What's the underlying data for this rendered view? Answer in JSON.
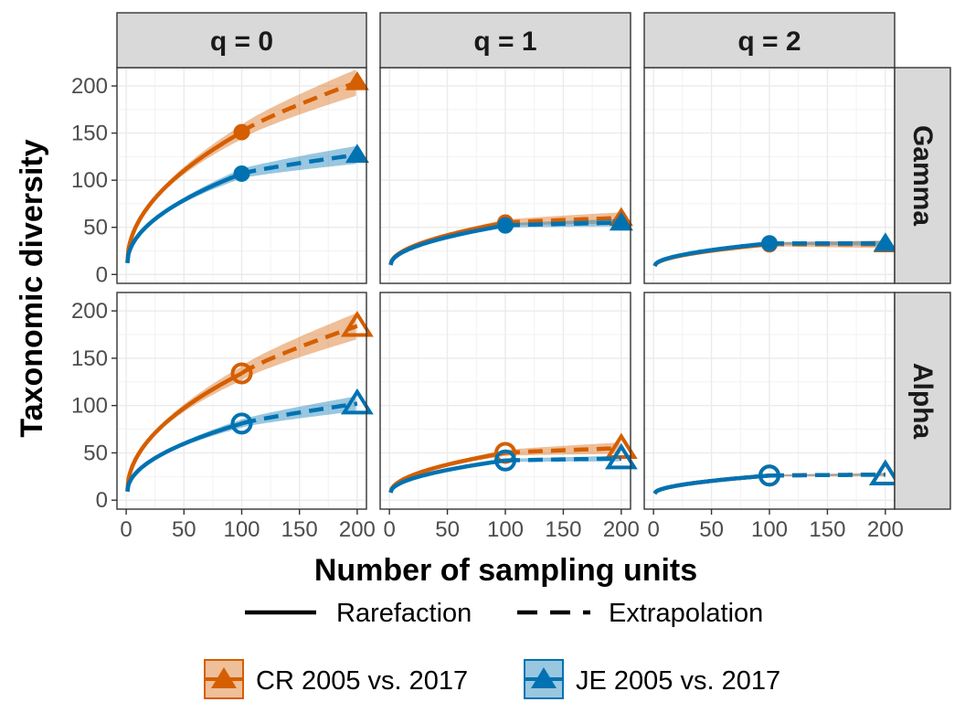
{
  "chart_data": {
    "type": "line",
    "title": "",
    "xlabel": "Number of sampling units",
    "ylabel": "Taxonomic diversity",
    "xlim": [
      0,
      200
    ],
    "ylim": [
      0,
      210
    ],
    "grid": true,
    "columns": [
      "q = 0",
      "q = 1",
      "q = 2"
    ],
    "rows": [
      "Gamma",
      "Alpha"
    ],
    "x_ticks": [
      0,
      50,
      100,
      150,
      200
    ],
    "y_ticks": [
      0,
      50,
      100,
      150,
      200
    ],
    "reference_size": 100,
    "max_size": 200,
    "method_legend": {
      "rarefaction": "Rarefaction",
      "extrapolation": "Extrapolation"
    },
    "series_legend": [
      {
        "name": "CR 2005 vs. 2017",
        "color": "#D55E00"
      },
      {
        "name": "JE 2005 vs. 2017",
        "color": "#0072B2"
      }
    ],
    "panels": [
      {
        "row": "Gamma",
        "column": "q = 0",
        "series": [
          {
            "name": "CR 2005 vs. 2017",
            "color": "#D55E00",
            "start": 13,
            "observed": 151,
            "extrapolated": 204,
            "ci_low": 190,
            "ci_high": 218
          },
          {
            "name": "JE 2005 vs. 2017",
            "color": "#0072B2",
            "start": 12,
            "observed": 107,
            "extrapolated": 127,
            "ci_low": 118,
            "ci_high": 137
          }
        ]
      },
      {
        "row": "Gamma",
        "column": "q = 1",
        "series": [
          {
            "name": "CR 2005 vs. 2017",
            "color": "#D55E00",
            "start": 10,
            "observed": 55,
            "extrapolated": 60,
            "ci_low": 54,
            "ci_high": 66
          },
          {
            "name": "JE 2005 vs. 2017",
            "color": "#0072B2",
            "start": 10,
            "observed": 52,
            "extrapolated": 55,
            "ci_low": 51,
            "ci_high": 59
          }
        ]
      },
      {
        "row": "Gamma",
        "column": "q = 2",
        "series": [
          {
            "name": "CR 2005 vs. 2017",
            "color": "#D55E00",
            "start": 9,
            "observed": 32,
            "extrapolated": 32,
            "ci_low": 28,
            "ci_high": 36
          },
          {
            "name": "JE 2005 vs. 2017",
            "color": "#0072B2",
            "start": 9,
            "observed": 33,
            "extrapolated": 33,
            "ci_low": 31,
            "ci_high": 36
          }
        ]
      },
      {
        "row": "Alpha",
        "column": "q = 0",
        "series": [
          {
            "name": "CR 2005 vs. 2017",
            "color": "#D55E00",
            "start": 10,
            "observed": 134,
            "extrapolated": 184,
            "ci_low": 170,
            "ci_high": 198
          },
          {
            "name": "JE 2005 vs. 2017",
            "color": "#0072B2",
            "start": 9,
            "observed": 81,
            "extrapolated": 102,
            "ci_low": 94,
            "ci_high": 110
          }
        ]
      },
      {
        "row": "Alpha",
        "column": "q = 1",
        "series": [
          {
            "name": "CR 2005 vs. 2017",
            "color": "#D55E00",
            "start": 8,
            "observed": 50,
            "extrapolated": 55,
            "ci_low": 49,
            "ci_high": 61
          },
          {
            "name": "JE 2005 vs. 2017",
            "color": "#0072B2",
            "start": 8,
            "observed": 42,
            "extrapolated": 44,
            "ci_low": 41,
            "ci_high": 47
          }
        ]
      },
      {
        "row": "Alpha",
        "column": "q = 2",
        "series": [
          {
            "name": "CR 2005 vs. 2017",
            "color": "#D55E00",
            "start": 7,
            "observed": 26,
            "extrapolated": 27,
            "ci_low": 25,
            "ci_high": 29
          },
          {
            "name": "JE 2005 vs. 2017",
            "color": "#0072B2",
            "start": 7,
            "observed": 26,
            "extrapolated": 27,
            "ci_low": 26,
            "ci_high": 28
          }
        ]
      }
    ]
  }
}
